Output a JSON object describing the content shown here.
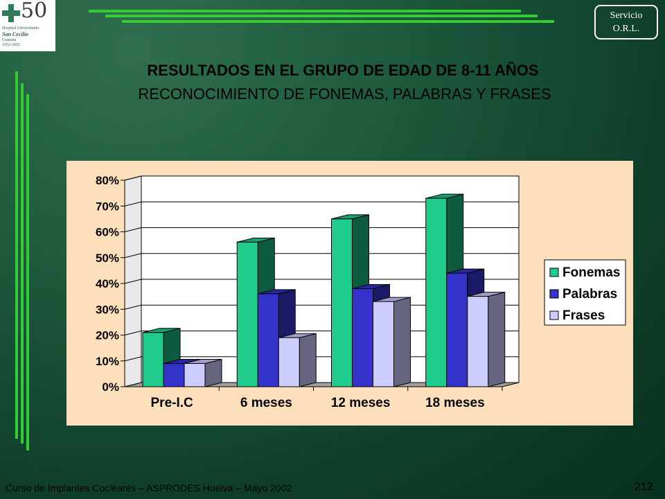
{
  "logo": {
    "number": "50",
    "line1": "Hospital Universitario",
    "line2": "San Cecilio",
    "line3": "Granada",
    "line4": "1952-2002"
  },
  "badge": {
    "line1": "Servicio",
    "line2": "O.R.L."
  },
  "title": "RESULTADOS EN EL GRUPO DE EDAD DE 8-11 AÑOS",
  "subtitle": "RECONOCIMIENTO DE FONEMAS, PALABRAS Y FRASES",
  "footer": "Curso de Implantes Cocleares – ASPRODES Huelva – Mayo 2002",
  "page_number": "212",
  "colors": {
    "fonemas": "#1fcc8c",
    "palabras": "#3333cc",
    "frases": "#ccccff",
    "panel": "#fde0bb",
    "accent_lines": "#33cc33"
  },
  "chart_data": {
    "type": "bar",
    "categories": [
      "Pre-I.C",
      "6 meses",
      "12 meses",
      "18 meses"
    ],
    "series": [
      {
        "name": "Fonemas",
        "values": [
          21,
          56,
          65,
          73
        ]
      },
      {
        "name": "Palabras",
        "values": [
          9,
          36,
          38,
          44
        ]
      },
      {
        "name": "Frases",
        "values": [
          9,
          19,
          33,
          35
        ]
      }
    ],
    "ylim": [
      0,
      80
    ],
    "yticks": [
      "0%",
      "10%",
      "20%",
      "30%",
      "40%",
      "50%",
      "60%",
      "70%",
      "80%"
    ],
    "grid": true,
    "legend_position": "right",
    "style": "3d-clustered"
  }
}
